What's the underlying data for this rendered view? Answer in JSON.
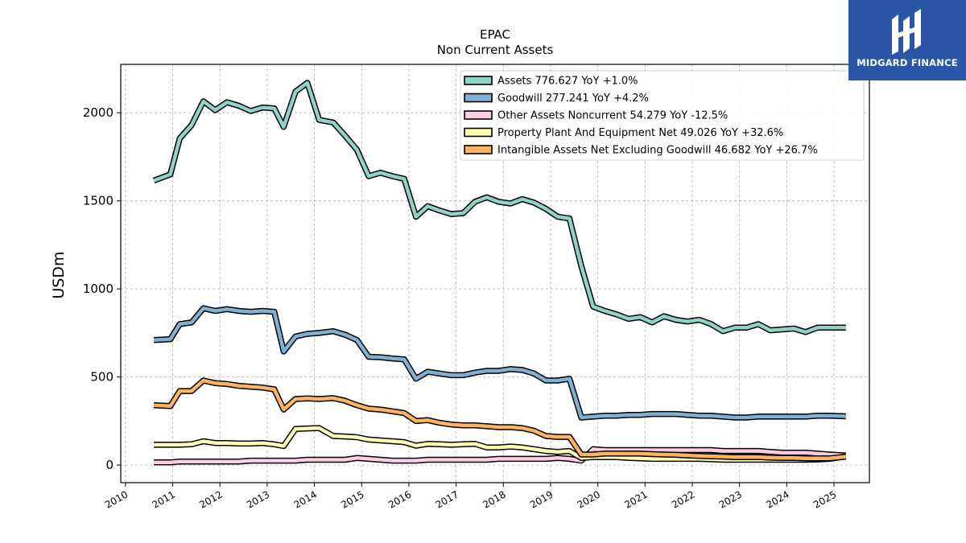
{
  "logo": {
    "text": "MIDGARD FINANCE",
    "bg_color": "#2b56a8"
  },
  "chart_data": {
    "type": "line",
    "title": "EPAC",
    "subtitle": "Non Current  Assets",
    "ylabel": "USDm",
    "xlabel": "",
    "xlim": [
      2009.9,
      2025.75
    ],
    "ylim": [
      -100,
      2275
    ],
    "yticks": [
      0,
      500,
      1000,
      1500,
      2000
    ],
    "xticks": [
      2010,
      2011,
      2012,
      2013,
      2014,
      2015,
      2016,
      2017,
      2018,
      2019,
      2020,
      2021,
      2022,
      2023,
      2024,
      2025
    ],
    "grid": true,
    "legend_position": "top-right",
    "x": [
      2010.6,
      2010.95,
      2011.15,
      2011.4,
      2011.65,
      2011.9,
      2012.15,
      2012.4,
      2012.65,
      2012.9,
      2013.15,
      2013.35,
      2013.6,
      2013.85,
      2014.1,
      2014.4,
      2014.65,
      2014.9,
      2015.15,
      2015.4,
      2015.65,
      2015.9,
      2016.15,
      2016.4,
      2016.65,
      2016.9,
      2017.15,
      2017.4,
      2017.65,
      2017.9,
      2018.15,
      2018.4,
      2018.65,
      2018.9,
      2019.15,
      2019.4,
      2019.65,
      2019.9,
      2020.15,
      2020.4,
      2020.65,
      2020.9,
      2021.15,
      2021.4,
      2021.65,
      2021.9,
      2022.15,
      2022.4,
      2022.65,
      2022.9,
      2023.15,
      2023.4,
      2023.65,
      2023.9,
      2024.15,
      2024.4,
      2024.65,
      2024.9,
      2025.25
    ],
    "series": [
      {
        "name": "Assets",
        "label": "Assets  776.627 YoY +1.0%",
        "color": "#8dd3c7",
        "values": [
          1615,
          1650,
          1855,
          1930,
          2065,
          2015,
          2060,
          2040,
          2010,
          2030,
          2025,
          1920,
          2120,
          2170,
          1960,
          1945,
          1870,
          1790,
          1640,
          1660,
          1640,
          1625,
          1410,
          1470,
          1445,
          1425,
          1430,
          1495,
          1520,
          1495,
          1485,
          1510,
          1490,
          1455,
          1410,
          1400,
          1130,
          900,
          875,
          855,
          830,
          840,
          810,
          845,
          825,
          815,
          825,
          800,
          760,
          780,
          780,
          800,
          765,
          770,
          775,
          755,
          780,
          780,
          780
        ]
      },
      {
        "name": "Goodwill",
        "label": "Goodwill  277.241 YoY +4.2%",
        "color": "#80b1d3",
        "values": [
          710,
          715,
          800,
          810,
          890,
          875,
          885,
          875,
          870,
          875,
          870,
          645,
          730,
          745,
          750,
          760,
          740,
          710,
          615,
          612,
          605,
          600,
          490,
          530,
          520,
          510,
          510,
          525,
          535,
          535,
          545,
          540,
          520,
          480,
          480,
          490,
          270,
          275,
          280,
          280,
          285,
          285,
          290,
          290,
          290,
          285,
          280,
          280,
          275,
          270,
          270,
          275,
          275,
          275,
          275,
          275,
          280,
          280,
          277
        ]
      },
      {
        "name": "Other Assets Noncurrent",
        "label": "Other Assets Noncurrent  54.279 YoY -12.5%",
        "color": "#fccde5",
        "values": [
          15,
          15,
          20,
          20,
          20,
          20,
          20,
          20,
          25,
          25,
          25,
          25,
          25,
          30,
          30,
          30,
          30,
          40,
          35,
          30,
          25,
          25,
          25,
          30,
          30,
          30,
          30,
          30,
          30,
          35,
          35,
          35,
          35,
          35,
          40,
          35,
          25,
          90,
          85,
          85,
          85,
          85,
          85,
          85,
          85,
          85,
          85,
          85,
          80,
          80,
          80,
          80,
          75,
          70,
          70,
          70,
          65,
          60,
          54
        ]
      },
      {
        "name": "Property Plant And Equipment Net",
        "label": "Property Plant And Equipment Net  49.026 YoY +32.6%",
        "color": "#ffffb3",
        "values": [
          115,
          115,
          115,
          118,
          135,
          125,
          125,
          122,
          122,
          125,
          118,
          108,
          205,
          208,
          210,
          165,
          162,
          158,
          145,
          140,
          135,
          130,
          110,
          120,
          118,
          115,
          118,
          120,
          100,
          100,
          105,
          100,
          90,
          80,
          75,
          80,
          40,
          45,
          45,
          45,
          40,
          38,
          35,
          35,
          35,
          35,
          35,
          33,
          30,
          30,
          30,
          30,
          30,
          30,
          30,
          30,
          32,
          35,
          49
        ]
      },
      {
        "name": "Intangible Assets Net Excluding Goodwill",
        "label": "Intangible Assets Net Excluding Goodwill  46.682 YoY +26.7%",
        "color": "#fdb462",
        "values": [
          340,
          335,
          420,
          420,
          480,
          465,
          460,
          450,
          445,
          440,
          430,
          315,
          375,
          378,
          375,
          380,
          365,
          340,
          320,
          315,
          305,
          295,
          250,
          255,
          240,
          230,
          225,
          225,
          220,
          215,
          215,
          210,
          195,
          165,
          160,
          160,
          60,
          60,
          65,
          65,
          65,
          65,
          62,
          60,
          58,
          55,
          52,
          50,
          48,
          45,
          45,
          45,
          42,
          40,
          40,
          38,
          38,
          38,
          47
        ]
      }
    ]
  }
}
